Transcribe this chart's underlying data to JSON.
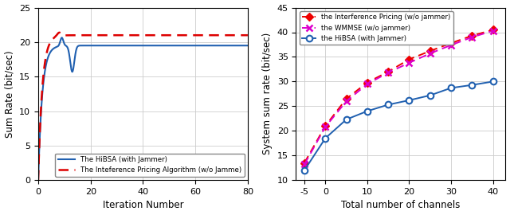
{
  "left": {
    "ylabel": "Sum Rate (bit/sec)",
    "xlabel": "Iteration Number",
    "ylim": [
      0,
      25
    ],
    "xlim": [
      0,
      80
    ],
    "yticks": [
      0,
      5,
      10,
      15,
      20,
      25
    ],
    "xticks": [
      0,
      20,
      40,
      60,
      80
    ],
    "hibsa_color": "#2060b0",
    "pricing_color": "#dd0000",
    "legend": [
      "The HiBSA (with Jammer)",
      "The Inteference Pricing Algorithm (w/o Jamme)"
    ]
  },
  "right": {
    "ylabel": "System sum rate (bit/sec)",
    "xlabel": "Total number of channels",
    "ylim": [
      10,
      45
    ],
    "xlim": [
      -7,
      43
    ],
    "yticks": [
      10,
      15,
      20,
      25,
      30,
      35,
      40,
      45
    ],
    "xticks": [
      -5,
      0,
      10,
      20,
      30,
      40
    ],
    "xtick_labels": [
      "-5",
      "0",
      "10",
      "20",
      "30",
      "40"
    ],
    "interference_color": "#ee0000",
    "wmmse_color": "#dd00cc",
    "hibsa_color": "#2060b0",
    "legend": [
      "the Interference Pricing (w/o jammer)",
      "the WMMSE (w/o jammer)",
      "the HiBSA (with Jammer)"
    ],
    "channels": [
      -5,
      0,
      5,
      10,
      15,
      20,
      25,
      30,
      35,
      40
    ],
    "interference_vals": [
      13.5,
      21.0,
      26.5,
      29.8,
      32.0,
      34.5,
      36.2,
      37.8,
      39.3,
      40.5
    ],
    "wmmse_vals": [
      13.2,
      20.8,
      26.0,
      29.5,
      31.8,
      33.8,
      35.7,
      37.4,
      39.0,
      40.3
    ],
    "hibsa_vals": [
      12.0,
      18.5,
      22.3,
      24.0,
      25.3,
      26.2,
      27.2,
      28.7,
      29.3,
      30.0
    ]
  }
}
